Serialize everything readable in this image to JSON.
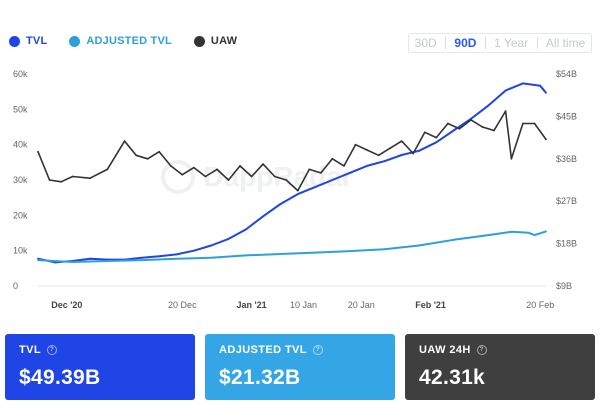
{
  "legend": [
    {
      "label": "TVL",
      "color": "#1f45e6"
    },
    {
      "label": "ADJUSTED TVL",
      "color": "#2e9fdc"
    },
    {
      "label": "UAW",
      "color": "#333333"
    }
  ],
  "range_tabs": [
    {
      "label": "30D",
      "active": false
    },
    {
      "label": "90D",
      "active": true
    },
    {
      "label": "1 Year",
      "active": false
    },
    {
      "label": "All time",
      "active": false
    }
  ],
  "watermark": "DappRadar",
  "cards": [
    {
      "title": "TVL",
      "value": "$49.39B",
      "color": "#1f45e6",
      "icon": "info-icon"
    },
    {
      "title": "ADJUSTED TVL",
      "value": "$21.32B",
      "color": "#35a6e5",
      "icon": "info-icon"
    },
    {
      "title": "UAW 24H",
      "value": "42.31k",
      "color": "#3f3f3f",
      "icon": "info-icon"
    }
  ],
  "chart_data": {
    "type": "line",
    "x_labels": [
      {
        "label": "Dec '20",
        "bold": true,
        "day": 5
      },
      {
        "label": "20 Dec",
        "bold": false,
        "day": 25
      },
      {
        "label": "Jan '21",
        "bold": true,
        "day": 37
      },
      {
        "label": "10 Jan",
        "bold": false,
        "day": 46
      },
      {
        "label": "20 Jan",
        "bold": false,
        "day": 56
      },
      {
        "label": "Feb '21",
        "bold": true,
        "day": 68
      },
      {
        "label": "20 Feb",
        "bold": false,
        "day": 87
      }
    ],
    "left_axis": {
      "ticks": [
        "0",
        "10k",
        "20k",
        "30k",
        "40k",
        "50k",
        "60k"
      ],
      "range": [
        0,
        60000
      ]
    },
    "right_axis": {
      "ticks": [
        "$9B",
        "$18B",
        "$27B",
        "$36B",
        "$45B",
        "$54B"
      ],
      "range": [
        9,
        54
      ]
    },
    "series": [
      {
        "name": "TVL",
        "axis": "right",
        "unit": "B USD",
        "color": "#1f45e6",
        "x": [
          0,
          3,
          6,
          9,
          12,
          15,
          18,
          21,
          24,
          27,
          30,
          33,
          36,
          39,
          42,
          45,
          48,
          51,
          54,
          57,
          60,
          63,
          66,
          69,
          72,
          75,
          78,
          81,
          84,
          87,
          88
        ],
        "values": [
          14.8,
          14.0,
          14.3,
          14.8,
          14.6,
          14.6,
          15.0,
          15.3,
          15.7,
          16.5,
          17.6,
          19.0,
          21.0,
          23.8,
          26.4,
          28.5,
          30.0,
          31.5,
          33.0,
          34.5,
          35.5,
          36.8,
          37.7,
          39.5,
          42.0,
          44.5,
          47.3,
          50.5,
          52.0,
          51.5,
          50.0
        ]
      },
      {
        "name": "ADJUSTED TVL",
        "axis": "right",
        "unit": "B USD",
        "color": "#2e9fdc",
        "x": [
          0,
          6,
          12,
          18,
          24,
          30,
          36,
          42,
          48,
          54,
          60,
          66,
          72,
          78,
          82,
          85,
          86,
          88
        ],
        "values": [
          14.5,
          14.1,
          14.3,
          14.5,
          14.8,
          15.0,
          15.5,
          15.8,
          16.1,
          16.4,
          16.8,
          17.6,
          18.8,
          19.8,
          20.5,
          20.3,
          19.8,
          20.6
        ]
      },
      {
        "name": "UAW",
        "axis": "left",
        "unit": "users",
        "color": "#333333",
        "x": [
          0,
          2,
          4,
          6,
          9,
          12,
          15,
          17,
          19,
          21,
          23,
          25,
          27,
          29,
          31,
          33,
          35,
          37,
          39,
          41,
          43,
          45,
          47,
          49,
          51,
          53,
          55,
          57,
          59,
          61,
          63,
          65,
          67,
          69,
          71,
          73,
          75,
          77,
          79,
          81,
          82,
          84,
          86,
          88
        ],
        "values": [
          38000,
          30000,
          29500,
          31000,
          30500,
          33000,
          41000,
          37000,
          36000,
          38000,
          34000,
          31500,
          33500,
          31000,
          33000,
          30000,
          34000,
          31000,
          34500,
          31000,
          30000,
          27000,
          33000,
          32000,
          36000,
          34000,
          40000,
          38500,
          37000,
          39000,
          41000,
          37500,
          43500,
          42000,
          46000,
          44500,
          47000,
          45000,
          44000,
          49500,
          36000,
          46000,
          46000,
          41500
        ]
      }
    ]
  }
}
